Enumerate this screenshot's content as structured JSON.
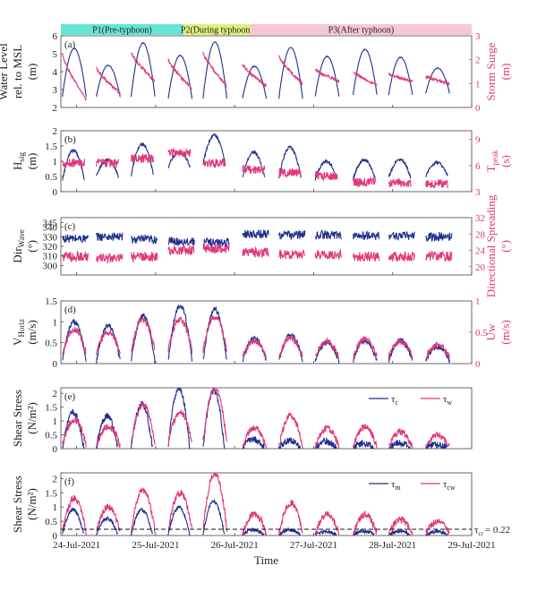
{
  "colors": {
    "blue": "#1f2f8f",
    "pink": "#e0377a"
  },
  "phases": [
    {
      "label": "P1(Pre-typhoon)",
      "start": 0.0,
      "end": 1.55,
      "color": "#64e5d4"
    },
    {
      "label": "P2(During typhoon)",
      "start": 1.55,
      "end": 2.4,
      "color": "#e1f07c"
    },
    {
      "label": "P3(After typhoon)",
      "start": 2.4,
      "end": 5.2,
      "color": "#f7c8d3"
    }
  ],
  "xaxis": {
    "label": "Time",
    "ticks": [
      {
        "value": 0.2,
        "label": "24-Jul-2021"
      },
      {
        "value": 1.2,
        "label": "25-Jul-2021"
      },
      {
        "value": 2.2,
        "label": "26-Jul-2021"
      },
      {
        "value": 3.2,
        "label": "27-Jul-2021"
      },
      {
        "value": 4.2,
        "label": "28-Jul-2021"
      },
      {
        "value": 5.2,
        "label": "29-Jul-2021"
      }
    ]
  },
  "bursts": [
    0.02,
    0.45,
    0.89,
    1.36,
    1.8,
    2.3,
    2.76,
    3.22,
    3.7,
    4.15,
    4.62
  ],
  "chart_data": [
    {
      "panel": "(a)",
      "type": "line",
      "left": {
        "label": [
          "Water Level",
          "rel. to MSL",
          "(m)"
        ],
        "ylim": [
          2,
          6
        ],
        "ticks": [
          2,
          3,
          4,
          5,
          6
        ]
      },
      "right": {
        "label": [
          "Storm Surge",
          "(m)"
        ],
        "ylim": [
          0,
          3
        ],
        "ticks": [
          0,
          1,
          2,
          3
        ]
      },
      "series": [
        {
          "axis": "left",
          "color": "blue",
          "dur": 0.3,
          "noise": 0.02,
          "peaks": [
            5.3,
            4.35,
            5.6,
            4.9,
            5.65,
            4.3,
            5.35,
            4.85,
            5.25,
            4.8,
            4.2
          ],
          "bases": [
            2.6,
            2.6,
            2.6,
            2.5,
            2.5,
            2.5,
            2.5,
            2.6,
            2.7,
            2.7,
            2.8
          ]
        },
        {
          "axis": "right",
          "color": "pink",
          "dur": 0.3,
          "noise": 0.06,
          "starts": [
            2.2,
            1.65,
            2.3,
            2.0,
            2.3,
            1.8,
            2.15,
            1.6,
            1.5,
            1.4,
            1.3
          ],
          "ends": [
            0.35,
            0.6,
            1.1,
            0.8,
            0.9,
            0.9,
            1.0,
            1.1,
            0.95,
            1.1,
            1.0
          ]
        }
      ]
    },
    {
      "panel": "(b)",
      "type": "line",
      "left": {
        "label": [
          "H",
          "sig",
          "(m)"
        ],
        "ylim": [
          0,
          2
        ],
        "ticks": [
          0,
          0.5,
          1,
          1.5,
          2
        ]
      },
      "right": {
        "label": [
          "T",
          "peak",
          "(s)"
        ],
        "ylim": [
          3,
          10
        ],
        "ticks": [
          3,
          6,
          9
        ]
      },
      "series": [
        {
          "axis": "left",
          "color": "blue",
          "dur": 0.28,
          "noise": 0.05,
          "peaks": [
            1.35,
            1.05,
            1.55,
            1.3,
            1.85,
            1.3,
            1.45,
            1.0,
            1.05,
            1.05,
            0.95
          ],
          "bases": [
            0.35,
            0.5,
            0.55,
            0.8,
            0.9,
            0.45,
            0.45,
            0.4,
            0.4,
            0.45,
            0.5
          ]
        },
        {
          "axis": "right",
          "color": "pink",
          "dur": 0.28,
          "noise": 0.5,
          "levels": [
            6.3,
            6.3,
            6.8,
            7.5,
            6.3,
            5.5,
            5.2,
            4.8,
            4.1,
            4.0,
            3.9
          ]
        }
      ]
    },
    {
      "panel": "(c)",
      "type": "line",
      "left": {
        "label": [
          "Dir",
          "Wave",
          "(°)"
        ],
        "ylim": [
          290,
          350
        ],
        "ticks": [
          300,
          310,
          320,
          330,
          340,
          345
        ]
      },
      "right": {
        "label": [
          "Directional Spreading",
          "(°)"
        ],
        "ylim": [
          18,
          32
        ],
        "ticks": [
          20,
          24,
          28,
          32
        ]
      },
      "series": [
        {
          "axis": "left",
          "color": "blue",
          "dur": 0.33,
          "noise": 4.5,
          "levels": [
            328,
            330,
            327,
            325,
            324,
            333,
            332,
            332,
            331,
            331,
            330
          ]
        },
        {
          "axis": "right",
          "color": "pink",
          "dur": 0.33,
          "noise": 1.2,
          "levels": [
            22.5,
            22.0,
            22.5,
            24.0,
            24.5,
            23.5,
            23.0,
            23.0,
            22.5,
            22.5,
            22.5
          ]
        }
      ]
    },
    {
      "panel": "(d)",
      "type": "line",
      "left": {
        "label": [
          "V",
          "Horiz",
          "(m/s)"
        ],
        "ylim": [
          0,
          1.5
        ],
        "ticks": [
          0,
          0.5,
          1,
          1.5
        ]
      },
      "right": {
        "label": [
          "Uw",
          "(m/s)"
        ],
        "ylim": [
          0,
          1
        ],
        "ticks": [
          0,
          0.5,
          1
        ]
      },
      "series": [
        {
          "axis": "left",
          "color": "blue",
          "dur": 0.3,
          "noise": 0.06,
          "peaks": [
            1.0,
            0.9,
            1.15,
            1.4,
            1.3,
            0.6,
            0.7,
            0.5,
            0.55,
            0.55,
            0.4
          ],
          "bases": [
            0.05,
            0.05,
            0.05,
            0.05,
            0.05,
            0.05,
            0.05,
            0.05,
            0.05,
            0.05,
            0.05
          ]
        },
        {
          "axis": "right",
          "color": "pink",
          "dur": 0.3,
          "noise": 0.05,
          "peaks": [
            0.55,
            0.5,
            0.7,
            0.7,
            0.75,
            0.35,
            0.4,
            0.35,
            0.4,
            0.35,
            0.3
          ],
          "bases": [
            0.15,
            0.15,
            0.2,
            0.2,
            0.2,
            0.1,
            0.1,
            0.1,
            0.1,
            0.1,
            0.1
          ]
        }
      ]
    },
    {
      "panel": "(e)",
      "type": "line",
      "left": {
        "label": [
          "Shear Stress",
          "(N/m²)"
        ],
        "ylim": [
          0,
          2.2
        ],
        "ticks": [
          0,
          0.5,
          1,
          1.5,
          2
        ]
      },
      "legend": {
        "position": "top-right",
        "entries": [
          {
            "symbol": "τ",
            "sub": "c",
            "color": "blue"
          },
          {
            "symbol": "τ",
            "sub": "w",
            "color": "pink"
          }
        ]
      },
      "series": [
        {
          "axis": "left",
          "color": "blue",
          "dur": 0.27,
          "noise": 0.12,
          "peaks": [
            1.3,
            1.2,
            1.6,
            2.2,
            2.1,
            0.35,
            0.3,
            0.25,
            0.2,
            0.2,
            0.15
          ],
          "bases": [
            0.02,
            0.02,
            0.02,
            0.02,
            0.02,
            0.02,
            0.02,
            0.02,
            0.02,
            0.02,
            0.02
          ]
        },
        {
          "axis": "left",
          "color": "pink",
          "dur": 0.3,
          "noise": 0.12,
          "peaks": [
            1.05,
            0.8,
            1.6,
            1.3,
            2.2,
            0.75,
            1.2,
            0.75,
            0.8,
            0.6,
            0.5
          ],
          "bases": [
            0.1,
            0.1,
            0.15,
            0.2,
            0.2,
            0.05,
            0.05,
            0.05,
            0.05,
            0.05,
            0.05
          ]
        }
      ]
    },
    {
      "panel": "(f)",
      "type": "line",
      "left": {
        "label": [
          "Shear Stress",
          "(N/m²)"
        ],
        "ylim": [
          0,
          2.2
        ],
        "ticks": [
          0,
          0.5,
          1,
          1.5,
          2
        ]
      },
      "legend": {
        "position": "top-right",
        "entries": [
          {
            "symbol": "τ",
            "sub": "m",
            "color": "blue"
          },
          {
            "symbol": "τ",
            "sub": "cw",
            "color": "pink"
          }
        ]
      },
      "threshold": {
        "value": 0.22,
        "symbol": "τ",
        "sub": "cr",
        "text": "= 0.22"
      },
      "series": [
        {
          "axis": "left",
          "color": "blue",
          "dur": 0.27,
          "noise": 0.06,
          "peaks": [
            0.9,
            0.6,
            0.9,
            1.0,
            1.2,
            0.2,
            0.2,
            0.15,
            0.15,
            0.15,
            0.15
          ],
          "bases": [
            0.02,
            0.02,
            0.02,
            0.02,
            0.02,
            0.02,
            0.02,
            0.02,
            0.02,
            0.02,
            0.02
          ]
        },
        {
          "axis": "left",
          "color": "pink",
          "dur": 0.3,
          "noise": 0.12,
          "peaks": [
            1.3,
            1.0,
            1.6,
            1.5,
            2.2,
            0.75,
            1.15,
            0.75,
            0.75,
            0.55,
            0.5
          ],
          "bases": [
            0.1,
            0.1,
            0.15,
            0.2,
            0.2,
            0.05,
            0.05,
            0.05,
            0.05,
            0.05,
            0.05
          ]
        }
      ]
    }
  ]
}
